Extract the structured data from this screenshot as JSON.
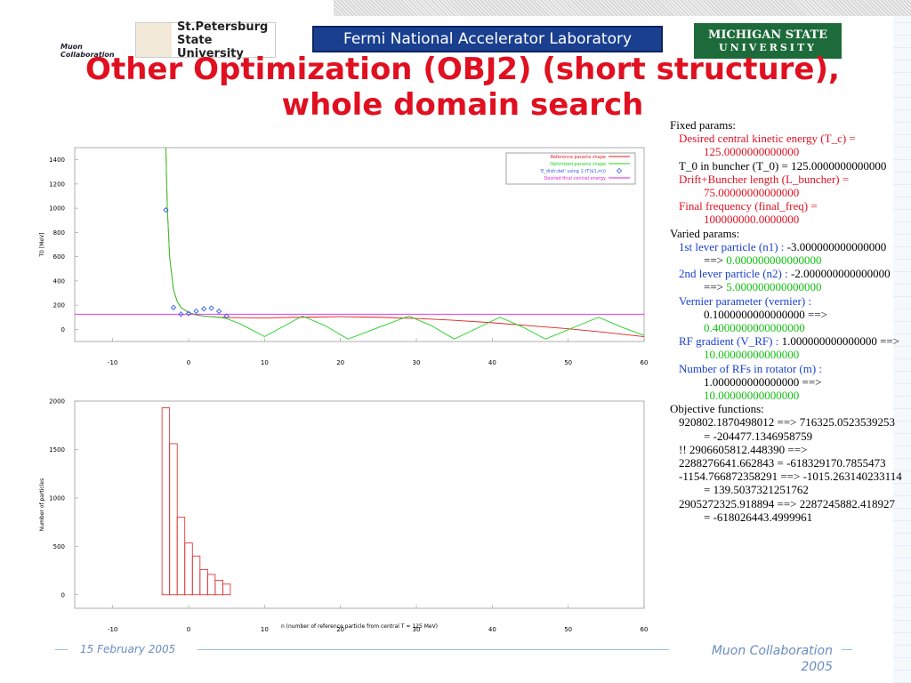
{
  "header": {
    "title": "Other Optimization (OBJ2) (short structure), whole domain search",
    "logos": [
      "Muon Collaboration",
      "St.Petersburg",
      "State University",
      "Fermi National Accelerator Laboratory",
      "MICHIGAN STATE",
      "UNIVERSITY"
    ]
  },
  "chart_data": [
    {
      "type": "line",
      "ylabel": "T0 [MeV]",
      "xlim": [
        -15,
        60
      ],
      "xticks": [
        -10,
        0,
        10,
        20,
        30,
        40,
        50,
        60
      ],
      "ylim": [
        -100,
        1500
      ],
      "yticks": [
        0,
        200,
        400,
        600,
        800,
        1000,
        1200,
        1400
      ],
      "series": [
        {
          "name": "Reference params shape",
          "color": "#e02020",
          "mode": "lines",
          "x": [
            -3,
            -2.8,
            -2.5,
            -2,
            -1.5,
            -1,
            0,
            1,
            2,
            4,
            6,
            10,
            15,
            20,
            25,
            30,
            35,
            40,
            45,
            50,
            55,
            60
          ],
          "values": [
            1500,
            1000,
            600,
            330,
            230,
            180,
            140,
            120,
            110,
            100,
            97,
            95,
            100,
            105,
            100,
            90,
            75,
            55,
            30,
            5,
            -25,
            -60
          ]
        },
        {
          "name": "Optimized params shape",
          "color": "#20d020",
          "mode": "lines",
          "x": [
            -3,
            -2.8,
            -2.5,
            -2,
            -1.5,
            -1,
            0,
            1,
            2,
            3,
            4,
            5,
            7,
            10,
            12.5,
            15,
            18,
            21,
            25,
            29,
            32,
            35,
            38,
            41,
            44,
            47,
            50.5,
            54,
            57,
            60
          ],
          "values": [
            1500,
            1000,
            600,
            330,
            230,
            180,
            140,
            120,
            110,
            105,
            100,
            90,
            40,
            -60,
            25,
            110,
            30,
            -80,
            15,
            110,
            30,
            -80,
            10,
            100,
            20,
            -80,
            10,
            100,
            20,
            -50
          ]
        },
        {
          "name": "'E_distr.dat' using 1:(T($1,m))",
          "color": "#3060e0",
          "mode": "points",
          "x": [
            -3,
            -2,
            -1,
            0,
            1,
            2,
            3,
            4,
            5
          ],
          "values": [
            985,
            180,
            125,
            130,
            150,
            170,
            175,
            150,
            110
          ]
        },
        {
          "name": "Desired final central energy",
          "color": "#e020e0",
          "mode": "lines",
          "x": [
            -15,
            60
          ],
          "values": [
            125,
            125
          ]
        }
      ]
    },
    {
      "type": "histogram",
      "ylabel": "Number of particles",
      "xlabel": "n (number of reference particle from central T = 125 MeV)",
      "xlim": [
        -15,
        60
      ],
      "xticks": [
        -10,
        0,
        10,
        20,
        30,
        40,
        50,
        60
      ],
      "ylim": [
        -140,
        2000
      ],
      "yticks": [
        0,
        500,
        1000,
        1500,
        2000
      ],
      "color": "#e02020",
      "bins": [
        -3.5,
        -2.5,
        -1.5,
        -0.5,
        0.5,
        1.5,
        2.5,
        3.5,
        4.5,
        5.5
      ],
      "counts": [
        1930,
        1560,
        800,
        535,
        400,
        260,
        210,
        150,
        110
      ]
    }
  ],
  "panel": {
    "fixed": {
      "heading": "Fixed params:",
      "items": [
        "Desired central kinetic energy (T_c) = 125.0000000000000",
        "T_0 in buncher (T_0) = 125.0000000000000",
        "Drift+Buncher length (L_buncher) = 75.00000000000000",
        "Final frequency (final_freq) = 100000000.0000000"
      ]
    },
    "varied": {
      "heading": "Varied params:",
      "items": [
        [
          "1st lever particle (n1) :",
          "-3.000000000000000 ==>",
          "0.000000000000000"
        ],
        [
          "2nd lever particle (n2) :",
          "-2.000000000000000 ==>",
          "5.000000000000000"
        ],
        [
          "Vernier parameter (vernier) :",
          "0.1000000000000000 ==>",
          "0.4000000000000000"
        ],
        [
          "RF gradient (V_RF) :",
          "1.000000000000000 ==>",
          "10.00000000000000"
        ],
        [
          "Number of RFs in rotator (m) :",
          "1.000000000000000 ==>",
          "10.00000000000000"
        ]
      ]
    },
    "objective": {
      "heading": "Objective functions:",
      "items": [
        "920802.1870498012 ==> 716325.0523539253 = -204477.1346958759",
        "!! 2906605812.448390 ==> 2288276641.662843 = -618329170.7855473",
        "-1154.766872358291 ==> -1015.263140233114 = 139.5037321251762",
        "2905272325.918894 ==> 2287245882.418927 = -618026443.4999961"
      ]
    }
  },
  "footer": {
    "date": "15 February 2005",
    "org": "Muon Collaboration 2005"
  }
}
